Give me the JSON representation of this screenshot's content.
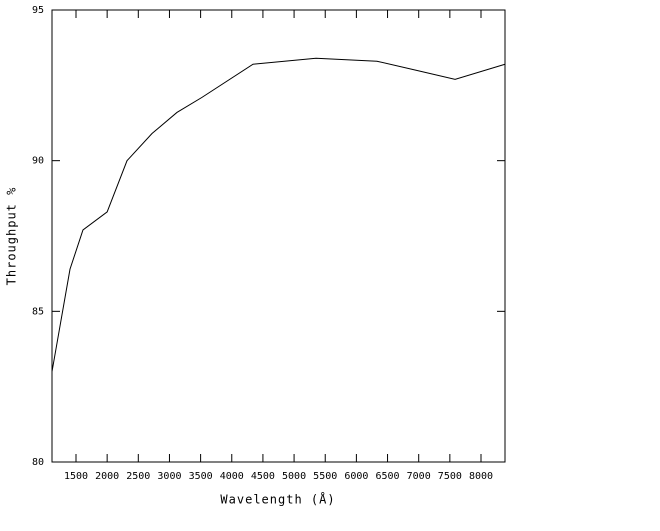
{
  "chart_data": {
    "type": "line",
    "xlabel": "Wavelength (Å)",
    "ylabel": "Throughput %",
    "x": [
      1115,
      1404,
      1612,
      2000,
      2319,
      2720,
      3120,
      3522,
      4341,
      5352,
      6330,
      6958,
      7584,
      8385
    ],
    "series": [
      {
        "color": "#000000",
        "values": [
          83.0,
          86.4,
          87.7,
          88.3,
          90.0,
          90.9,
          91.6,
          92.1,
          93.2,
          93.4,
          93.3,
          93.0,
          92.7,
          93.2
        ]
      }
    ],
    "xlim": [
      1115,
      8385
    ],
    "xticks": [
      1500,
      2000,
      2500,
      3000,
      3500,
      4000,
      4500,
      5000,
      5500,
      6000,
      6500,
      7000,
      7500,
      8000
    ],
    "ylim": [
      80,
      95
    ],
    "yticks": [
      80,
      85,
      90,
      95
    ]
  }
}
